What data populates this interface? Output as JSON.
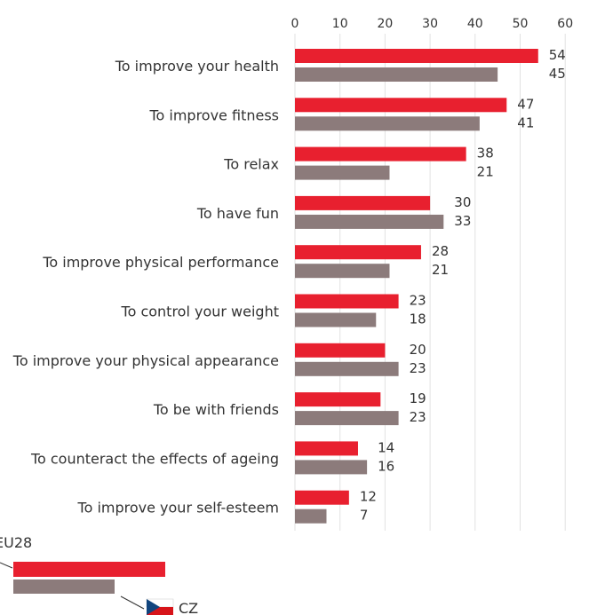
{
  "chart_data": {
    "type": "bar",
    "orientation": "horizontal",
    "categories": [
      "To improve your health",
      "To improve fitness",
      "To relax",
      "To have fun",
      "To improve physical performance",
      "To control your weight",
      "To improve your physical appearance",
      "To be with friends",
      "To counteract the effects of ageing",
      "To improve your self-esteem"
    ],
    "series": [
      {
        "name": "EU28",
        "color": "#e8202f",
        "values": [
          54,
          47,
          38,
          30,
          28,
          23,
          20,
          19,
          14,
          12
        ]
      },
      {
        "name": "CZ",
        "color": "#8c7b7b",
        "values": [
          45,
          41,
          21,
          33,
          21,
          18,
          23,
          23,
          16,
          7
        ]
      }
    ],
    "xlim": [
      0,
      60
    ],
    "xticks": [
      0,
      10,
      20,
      30,
      40,
      50,
      60
    ],
    "xtick_position": "top",
    "grid": true,
    "legend": {
      "position": "bottom-left",
      "items": [
        "EU28",
        "CZ"
      ]
    },
    "title": "",
    "xlabel": "",
    "ylabel": ""
  }
}
